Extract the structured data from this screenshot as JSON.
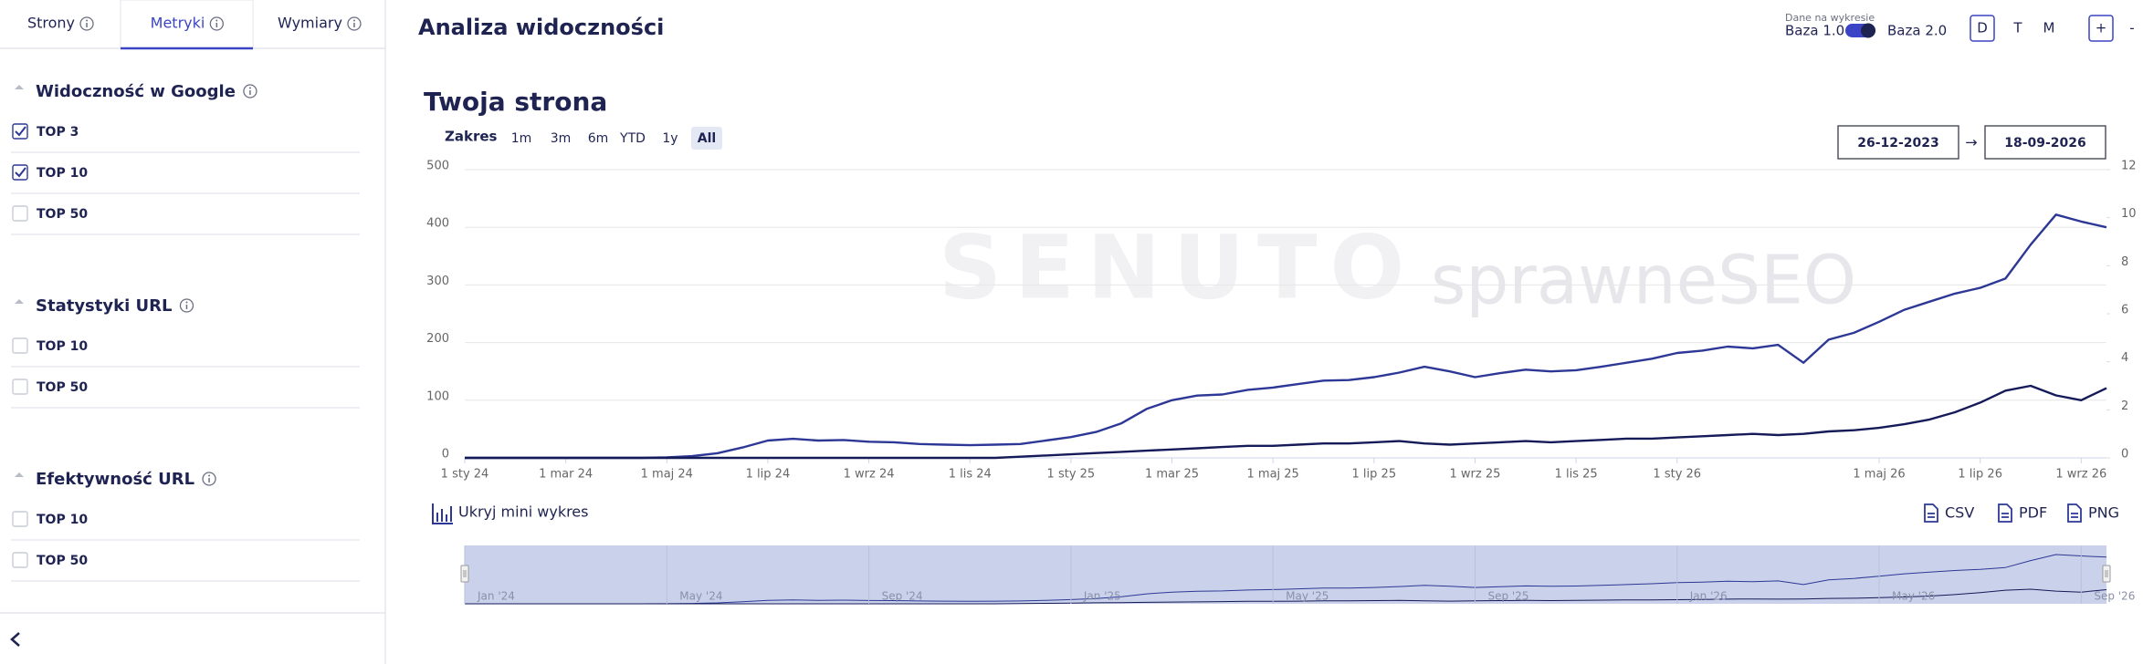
{
  "sidebar": {
    "tabs": [
      {
        "label": "Strony",
        "active": false
      },
      {
        "label": "Metryki",
        "active": true
      },
      {
        "label": "Wymiary",
        "active": false
      }
    ],
    "sections": [
      {
        "title": "Widoczność w Google",
        "items": [
          {
            "label": "TOP 3",
            "checked": true
          },
          {
            "label": "TOP 10",
            "checked": true
          },
          {
            "label": "TOP 50",
            "checked": false
          }
        ]
      },
      {
        "title": "Statystyki URL",
        "items": [
          {
            "label": "TOP 10",
            "checked": false
          },
          {
            "label": "TOP 50",
            "checked": false
          }
        ]
      },
      {
        "title": "Efektywność URL",
        "items": [
          {
            "label": "TOP 10",
            "checked": false
          },
          {
            "label": "TOP 50",
            "checked": false
          }
        ]
      }
    ]
  },
  "header": {
    "title": "Analiza widoczności",
    "data_source_label": "Dane na wykresie",
    "toggle_left": "Baza 1.0",
    "toggle_right": "Baza 2.0",
    "granularity": [
      {
        "label": "D",
        "active": true
      },
      {
        "label": "T",
        "active": false
      },
      {
        "label": "M",
        "active": false
      }
    ],
    "zoom": [
      {
        "label": "+",
        "boxed": true
      },
      {
        "label": "-",
        "boxed": false
      }
    ]
  },
  "chart_data": {
    "type": "line",
    "title": "Twoja strona",
    "range_label": "Zakres",
    "range_buttons": [
      {
        "label": "1m",
        "active": false
      },
      {
        "label": "3m",
        "active": false
      },
      {
        "label": "6m",
        "active": false
      },
      {
        "label": "YTD",
        "active": false
      },
      {
        "label": "1y",
        "active": false
      },
      {
        "label": "All",
        "active": true
      }
    ],
    "date_from": "26-12-2023",
    "date_arrow": "→",
    "date_to": "18-09-2026",
    "watermarks": [
      "SENUTO",
      "sprawneSEO"
    ],
    "categories": [
      "1 sty 24",
      null,
      null,
      null,
      "1 mar 24",
      null,
      null,
      null,
      "1 maj 24",
      null,
      null,
      null,
      "1 lip 24",
      null,
      null,
      null,
      "1 wrz 24",
      null,
      null,
      null,
      "1 lis 24",
      null,
      null,
      null,
      "1 sty 25",
      null,
      null,
      null,
      "1 mar 25",
      null,
      null,
      null,
      "1 maj 25",
      null,
      null,
      null,
      "1 lip 25",
      null,
      null,
      null,
      "1 wrz 25",
      null,
      null,
      null,
      "1 lis 25",
      null,
      null,
      null,
      "1 sty 26",
      null,
      null,
      null,
      null,
      null,
      null,
      null,
      "1 maj 26",
      null,
      null,
      null,
      "1 lip 26",
      null,
      null,
      null,
      "1 wrz 26",
      null
    ],
    "series": [
      {
        "color": "#2d3896",
        "values": [
          0,
          0,
          0,
          0,
          0,
          0,
          0,
          0,
          1,
          3,
          8,
          18,
          30,
          33,
          30,
          31,
          28,
          27,
          24,
          23,
          22,
          23,
          24,
          30,
          36,
          45,
          60,
          85,
          100,
          108,
          110,
          118,
          122,
          128,
          134,
          135,
          140,
          148,
          158,
          150,
          140,
          147,
          153,
          150,
          152,
          158,
          165,
          172,
          182,
          186,
          193,
          190,
          196,
          165,
          205,
          217,
          236,
          257,
          271,
          285,
          295,
          311,
          370,
          422,
          410,
          400
        ]
      },
      {
        "color": "#151a58",
        "axis": "y2",
        "values": [
          0,
          0,
          0,
          0,
          0,
          0,
          0,
          0,
          0,
          0,
          0,
          0,
          0,
          0,
          0,
          0,
          0,
          0,
          0,
          0,
          0,
          0,
          0.05,
          0.1,
          0.15,
          0.2,
          0.25,
          0.3,
          0.35,
          0.4,
          0.45,
          0.5,
          0.5,
          0.55,
          0.6,
          0.6,
          0.65,
          0.7,
          0.6,
          0.55,
          0.6,
          0.65,
          0.7,
          0.65,
          0.7,
          0.75,
          0.8,
          0.8,
          0.85,
          0.9,
          0.95,
          1.0,
          0.95,
          1.0,
          1.1,
          1.15,
          1.25,
          1.4,
          1.6,
          1.9,
          2.3,
          2.8,
          3.0,
          2.6,
          2.4,
          2.9
        ]
      }
    ],
    "ylim": [
      0,
      500
    ],
    "yticks": [
      0,
      100,
      200,
      300,
      400,
      500
    ],
    "y2lim": [
      0,
      12
    ],
    "y2ticks": [
      0,
      2,
      4,
      6,
      8,
      10,
      12
    ],
    "grid": true,
    "mini_chart_toggle": "Ukryj mini wykres",
    "exports": [
      "CSV",
      "PDF",
      "PNG"
    ],
    "navigator_labels": [
      "Jan '24",
      "May '24",
      "Sep '24",
      "Jan '25",
      "May '25",
      "Sep '25",
      "Jan '26",
      "May '26",
      "Sep '26"
    ]
  }
}
